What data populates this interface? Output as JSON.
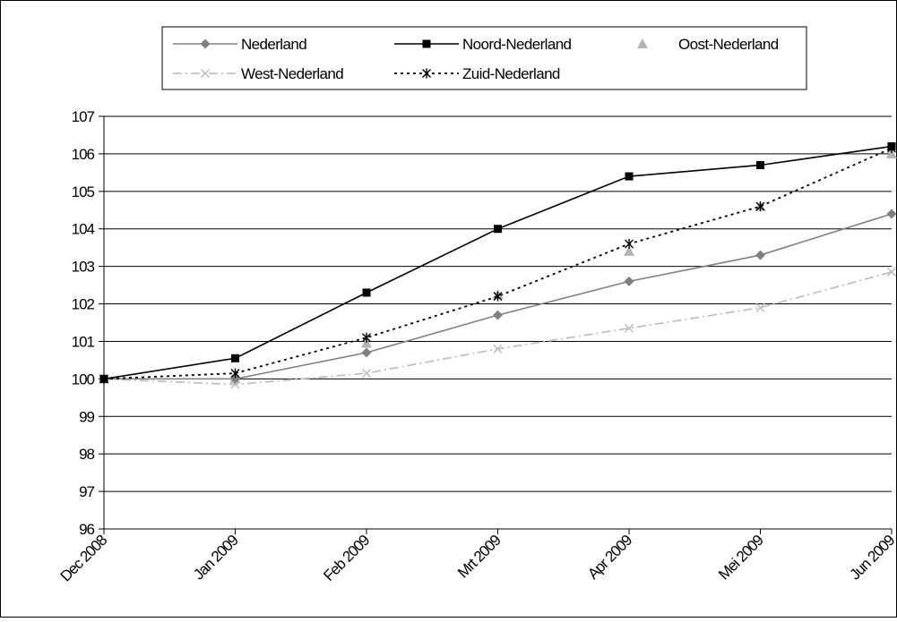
{
  "chart_data": {
    "type": "line",
    "title": "",
    "xlabel": "",
    "ylabel": "",
    "categories": [
      "Dec 2008",
      "Jan 2009",
      "Feb 2009",
      "Mrt 2009",
      "Apr 2009",
      "Mei 2009",
      "Jun 2009"
    ],
    "ylim": [
      96,
      107
    ],
    "yticks": [
      96,
      97,
      98,
      99,
      100,
      101,
      102,
      103,
      104,
      105,
      106,
      107
    ],
    "grid": "horizontal",
    "legend_position": "top",
    "series": [
      {
        "name": "Nederland",
        "values": [
          100,
          100.0,
          100.7,
          101.7,
          102.6,
          103.3,
          104.4
        ],
        "color": "#808080",
        "line": "solid",
        "marker": "diamond"
      },
      {
        "name": "Noord-Nederland",
        "values": [
          100,
          100.55,
          102.3,
          104.0,
          105.4,
          105.7,
          106.2
        ],
        "color": "#000000",
        "line": "solid",
        "marker": "square"
      },
      {
        "name": "Oost-Nederland",
        "values": [
          100,
          100.0,
          100.95,
          102.25,
          103.4,
          104.6,
          106.0
        ],
        "color": "#b3b3b3",
        "line": "none",
        "marker": "triangle"
      },
      {
        "name": "West-Nederland",
        "values": [
          100,
          99.85,
          100.15,
          100.8,
          101.35,
          101.9,
          102.85
        ],
        "color": "#c0c0c0",
        "line": "dashdot",
        "marker": "x"
      },
      {
        "name": "Zuid-Nederland",
        "values": [
          100,
          100.15,
          101.1,
          102.2,
          103.6,
          104.6,
          106.15
        ],
        "color": "#000000",
        "line": "dotted",
        "marker": "asterisk"
      }
    ]
  }
}
